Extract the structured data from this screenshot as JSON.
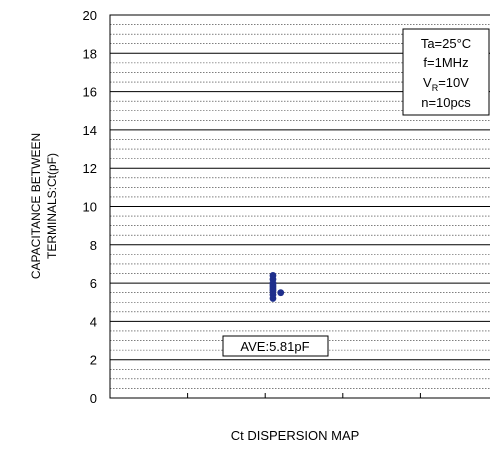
{
  "chart_data": {
    "type": "scatter",
    "title": "",
    "xlabel": "Ct DISPERSION MAP",
    "ylabel_lines": [
      "CAPACITANCE BETWEEN",
      "TERMINALS:Ct(pF)"
    ],
    "ylim": [
      0,
      20
    ],
    "y_ticks": [
      0,
      2,
      4,
      6,
      8,
      10,
      12,
      14,
      16,
      18,
      20
    ],
    "y_tick_labels": [
      "0",
      "2",
      "4",
      "6",
      "8",
      "10",
      "12",
      "14",
      "16",
      "18",
      "20"
    ],
    "grid": true,
    "minor_grid_step": 0.5,
    "x_divisions": 5,
    "point_color": "#1f2f8c",
    "points": [
      {
        "x": 2.1,
        "y": 6.4
      },
      {
        "x": 2.1,
        "y": 6.2
      },
      {
        "x": 2.1,
        "y": 6.0
      },
      {
        "x": 2.1,
        "y": 5.9
      },
      {
        "x": 2.1,
        "y": 5.8
      },
      {
        "x": 2.1,
        "y": 5.7
      },
      {
        "x": 2.1,
        "y": 5.6
      },
      {
        "x": 2.1,
        "y": 5.4
      },
      {
        "x": 2.1,
        "y": 5.2
      },
      {
        "x": 2.2,
        "y": 5.5
      }
    ],
    "conditions": {
      "line1": "Ta=25°C",
      "line2": "f=1MHz",
      "line3_main": "V",
      "line3_sub": "R",
      "line3_rest": "=10V",
      "line4": "n=10pcs"
    },
    "annotation": "AVE:5.81pF"
  }
}
